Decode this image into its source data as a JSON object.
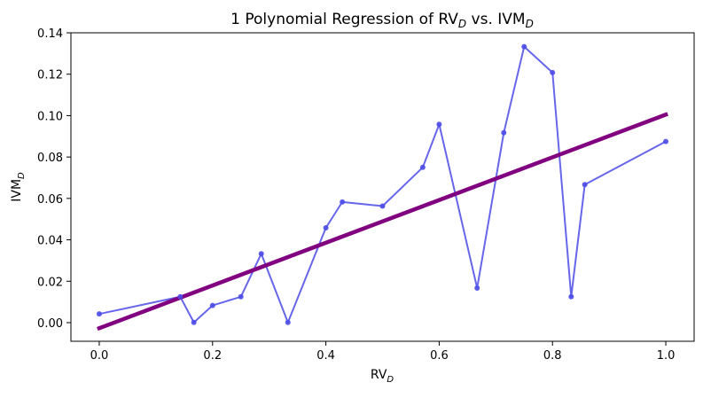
{
  "chart_data": {
    "type": "line",
    "title": "1 Polynomial Regression of RV",
    "title_sub": "D",
    "title_mid": " vs. IVM",
    "title_sub2": "D",
    "xlabel": "RV",
    "xlabel_sub": "D",
    "ylabel": "IVM",
    "ylabel_sub": "D",
    "xlim": [
      -0.05,
      1.05
    ],
    "ylim": [
      -0.009,
      0.14
    ],
    "xticks": [
      0.0,
      0.2,
      0.4,
      0.6,
      0.8,
      1.0
    ],
    "xtick_labels": [
      "0.0",
      "0.2",
      "0.4",
      "0.6",
      "0.8",
      "1.0"
    ],
    "yticks": [
      0.0,
      0.02,
      0.04,
      0.06,
      0.08,
      0.1,
      0.12,
      0.14
    ],
    "ytick_labels": [
      "0.00",
      "0.02",
      "0.04",
      "0.06",
      "0.08",
      "0.10",
      "0.12",
      "0.14"
    ],
    "series": [
      {
        "name": "data",
        "color": "#4b4be8",
        "x": [
          0.0,
          0.143,
          0.167,
          0.2,
          0.25,
          0.286,
          0.333,
          0.4,
          0.429,
          0.5,
          0.571,
          0.6,
          0.667,
          0.714,
          0.75,
          0.8,
          0.833,
          0.857,
          1.0
        ],
        "y": [
          0.0042,
          0.0125,
          0.0001,
          0.0083,
          0.0125,
          0.0333,
          0.0001,
          0.0458,
          0.0583,
          0.0563,
          0.075,
          0.0958,
          0.0167,
          0.0917,
          0.1333,
          0.1208,
          0.0125,
          0.0667,
          0.0875
        ]
      },
      {
        "name": "regression",
        "color": "#800080",
        "x": [
          0.0,
          1.0
        ],
        "y": [
          -0.0027,
          0.1005
        ]
      }
    ]
  }
}
